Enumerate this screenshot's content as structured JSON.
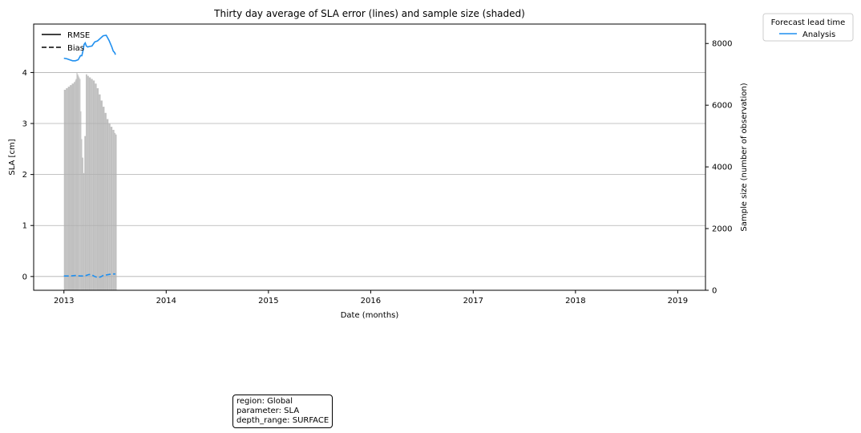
{
  "chart_data": {
    "type": "line",
    "title": "Thirty day average of SLA error (lines) and sample size (shaded)",
    "xlabel": "Date (months)",
    "ylabel": "SLA [cm]",
    "y2label": "Sample size (number of observation)",
    "xlim": [
      "2012-09-15",
      "2019-04-10"
    ],
    "ylim": [
      -0.27,
      4.95
    ],
    "y2lim": [
      0,
      8630
    ],
    "x_ticks": [
      "2013",
      "2014",
      "2015",
      "2016",
      "2017",
      "2018",
      "2019"
    ],
    "y_ticks": [
      0,
      1,
      2,
      3,
      4
    ],
    "y2_ticks": [
      0,
      2000,
      4000,
      6000,
      8000
    ],
    "grid": "y-major",
    "style_legend": {
      "placement": "top-left",
      "entries": [
        {
          "label": "RMSE",
          "linestyle": "solid"
        },
        {
          "label": "Bias",
          "linestyle": "dashed"
        }
      ]
    },
    "series_legend": {
      "title": "Forecast lead time",
      "placement": "outside-top-right",
      "entries": [
        {
          "label": "Analysis",
          "color": "#1f8fef"
        }
      ]
    },
    "series": [
      {
        "name": "Analysis",
        "color": "#1f8fef",
        "rmse": {
          "x": [
            "2013-01-01",
            "2013-01-11",
            "2013-01-21",
            "2013-02-01",
            "2013-02-11",
            "2013-02-21",
            "2013-03-01",
            "2013-03-06",
            "2013-03-11",
            "2013-03-14",
            "2013-03-18",
            "2013-03-22",
            "2013-03-27",
            "2013-04-01",
            "2013-04-11",
            "2013-04-21",
            "2013-05-01",
            "2013-05-11",
            "2013-05-21",
            "2013-06-01",
            "2013-06-11",
            "2013-06-21",
            "2013-06-26",
            "2013-07-01",
            "2013-07-04"
          ],
          "y": [
            4.28,
            4.27,
            4.25,
            4.23,
            4.23,
            4.25,
            4.33,
            4.33,
            4.45,
            4.55,
            4.58,
            4.52,
            4.5,
            4.51,
            4.52,
            4.6,
            4.62,
            4.67,
            4.72,
            4.73,
            4.63,
            4.5,
            4.42,
            4.39,
            4.35
          ]
        },
        "bias": {
          "x": [
            "2013-01-01",
            "2013-01-21",
            "2013-02-11",
            "2013-03-01",
            "2013-03-11",
            "2013-03-21",
            "2013-04-01",
            "2013-04-11",
            "2013-04-21",
            "2013-05-01",
            "2013-05-11",
            "2013-05-21",
            "2013-06-01",
            "2013-06-11",
            "2013-06-21",
            "2013-07-04"
          ],
          "y": [
            0.01,
            0.01,
            0.02,
            0.01,
            0.01,
            0.02,
            0.04,
            0.03,
            0.0,
            -0.02,
            -0.01,
            0.02,
            0.03,
            0.04,
            0.05,
            0.05
          ]
        }
      }
    ],
    "sample_size": {
      "color": "#c0c0c0",
      "x": [
        "2013-01-01",
        "2013-01-08",
        "2013-01-15",
        "2013-01-22",
        "2013-01-29",
        "2013-02-05",
        "2013-02-10",
        "2013-02-12",
        "2013-02-15",
        "2013-02-18",
        "2013-02-21",
        "2013-02-23",
        "2013-02-26",
        "2013-03-01",
        "2013-03-04",
        "2013-03-07",
        "2013-03-11",
        "2013-03-15",
        "2013-03-20",
        "2013-03-25",
        "2013-03-31",
        "2013-04-07",
        "2013-04-14",
        "2013-04-21",
        "2013-04-28",
        "2013-05-05",
        "2013-05-12",
        "2013-05-19",
        "2013-05-26",
        "2013-06-02",
        "2013-06-09",
        "2013-06-16",
        "2013-06-23",
        "2013-06-30",
        "2013-07-04"
      ],
      "values": [
        6500,
        6550,
        6600,
        6650,
        6700,
        6750,
        6800,
        6850,
        7050,
        7000,
        6950,
        6900,
        6850,
        5800,
        4900,
        4300,
        3800,
        5000,
        7000,
        6950,
        6900,
        6850,
        6800,
        6700,
        6550,
        6350,
        6150,
        5950,
        5750,
        5550,
        5400,
        5300,
        5200,
        5100,
        5050
      ]
    }
  },
  "info_box": {
    "region": "region: Global",
    "parameter": "parameter: SLA",
    "depth_range": "depth_range: SURFACE"
  }
}
